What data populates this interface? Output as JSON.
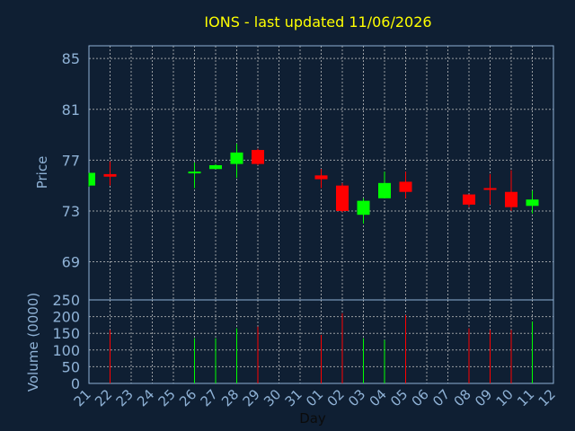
{
  "chart_data": [
    {
      "type": "candlestick",
      "title": "IONS - last updated 11/06/2026",
      "ylabel": "Price",
      "ylim": [
        66,
        86
      ],
      "yticks": [
        85,
        81,
        77,
        73,
        69
      ],
      "grid": true,
      "colors": {
        "up": "#00ff00",
        "down": "#ff0000",
        "grid": "#c8c8c8",
        "axis": "#8fb2d6",
        "title": "#ffff00"
      },
      "candles": [
        {
          "x": "21",
          "open": 75.0,
          "close": 76.0,
          "high": 76.0,
          "low": 74.9
        },
        {
          "x": "22",
          "open": 75.9,
          "close": 75.7,
          "high": 76.9,
          "low": 75.0
        },
        {
          "x": "26",
          "open": 76.0,
          "close": 76.1,
          "high": 76.8,
          "low": 74.8
        },
        {
          "x": "27",
          "open": 76.3,
          "close": 76.6,
          "high": 76.7,
          "low": 76.3
        },
        {
          "x": "28",
          "open": 76.7,
          "close": 77.6,
          "high": 78.3,
          "low": 75.6
        },
        {
          "x": "29",
          "open": 77.8,
          "close": 76.7,
          "high": 77.9,
          "low": 76.6
        },
        {
          "x": "01",
          "open": 75.8,
          "close": 75.5,
          "high": 76.3,
          "low": 74.8
        },
        {
          "x": "02",
          "open": 75.0,
          "close": 73.0,
          "high": 75.2,
          "low": 72.9
        },
        {
          "x": "03",
          "open": 72.7,
          "close": 73.8,
          "high": 74.0,
          "low": 72.0
        },
        {
          "x": "04",
          "open": 74.0,
          "close": 75.2,
          "high": 76.1,
          "low": 74.0
        },
        {
          "x": "05",
          "open": 75.3,
          "close": 74.5,
          "high": 76.1,
          "low": 74.0
        },
        {
          "x": "08",
          "open": 74.3,
          "close": 73.5,
          "high": 74.3,
          "low": 73.3
        },
        {
          "x": "09",
          "open": 74.8,
          "close": 74.7,
          "high": 75.9,
          "low": 73.5
        },
        {
          "x": "10",
          "open": 74.5,
          "close": 73.3,
          "high": 76.2,
          "low": 73.0
        },
        {
          "x": "11",
          "open": 73.4,
          "close": 73.9,
          "high": 74.6,
          "low": 72.8
        }
      ]
    },
    {
      "type": "bar",
      "ylabel": "Volume (0000)",
      "xlabel": "Day",
      "ylim": [
        0,
        250
      ],
      "yticks": [
        250,
        200,
        150,
        100,
        50,
        0
      ],
      "grid": true,
      "categories": [
        "21",
        "22",
        "23",
        "24",
        "25",
        "26",
        "27",
        "28",
        "29",
        "30",
        "31",
        "01",
        "02",
        "03",
        "04",
        "05",
        "06",
        "07",
        "08",
        "09",
        "10",
        "11",
        "12"
      ],
      "values": [
        {
          "x": "22",
          "volume": 160,
          "direction": "down"
        },
        {
          "x": "26",
          "volume": 135,
          "direction": "up"
        },
        {
          "x": "27",
          "volume": 135,
          "direction": "up"
        },
        {
          "x": "28",
          "volume": 165,
          "direction": "up"
        },
        {
          "x": "29",
          "volume": 170,
          "direction": "down"
        },
        {
          "x": "01",
          "volume": 145,
          "direction": "down"
        },
        {
          "x": "02",
          "volume": 210,
          "direction": "down"
        },
        {
          "x": "03",
          "volume": 135,
          "direction": "up"
        },
        {
          "x": "04",
          "volume": 130,
          "direction": "up"
        },
        {
          "x": "05",
          "volume": 205,
          "direction": "down"
        },
        {
          "x": "08",
          "volume": 165,
          "direction": "down"
        },
        {
          "x": "09",
          "volume": 160,
          "direction": "down"
        },
        {
          "x": "10",
          "volume": 160,
          "direction": "down"
        },
        {
          "x": "11",
          "volume": 185,
          "direction": "up"
        }
      ]
    }
  ]
}
